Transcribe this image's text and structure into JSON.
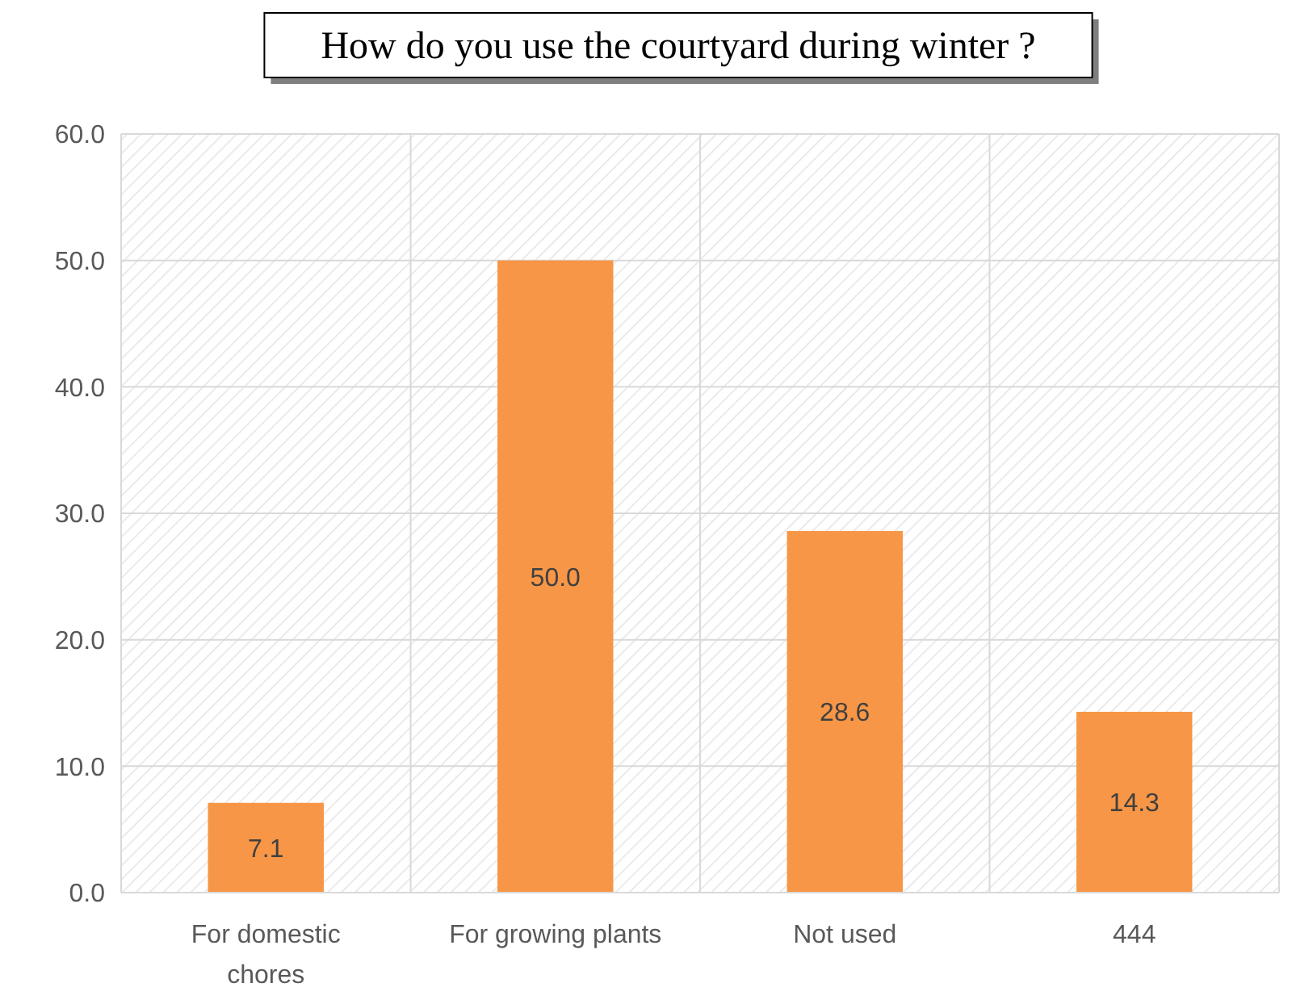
{
  "chart_data": {
    "type": "bar",
    "title": "How do you use the courtyard during winter ?",
    "categories": [
      "For domestic chores",
      "For growing plants",
      "Not used",
      "444"
    ],
    "values": [
      7.1,
      50.0,
      28.6,
      14.3
    ],
    "color": "#f79646",
    "ylim": [
      0,
      60
    ],
    "yticks": [
      {
        "value": 0,
        "label": "0.0"
      },
      {
        "value": 10,
        "label": "10.0"
      },
      {
        "value": 20,
        "label": "20.0"
      },
      {
        "value": 30,
        "label": "30.0"
      },
      {
        "value": 40,
        "label": "40.0"
      },
      {
        "value": 50,
        "label": "50.0"
      },
      {
        "value": 60,
        "label": "60.0"
      }
    ],
    "value_labels": [
      "7.1",
      "50.0",
      "28.6",
      "14.3"
    ],
    "grid": true
  }
}
